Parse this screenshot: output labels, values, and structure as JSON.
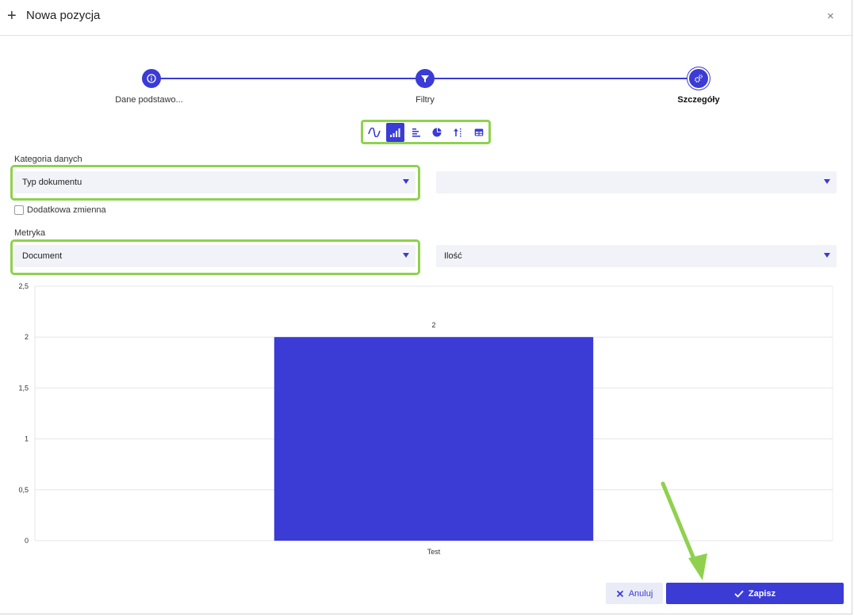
{
  "header": {
    "title": "Nowa pozycja",
    "plus_icon": "+",
    "close_icon": "×"
  },
  "stepper": {
    "steps": [
      {
        "label": "Dane podstawo...",
        "icon": "info-icon"
      },
      {
        "label": "Filtry",
        "icon": "filter-icon"
      },
      {
        "label": "Szczegóły",
        "icon": "gears-icon"
      }
    ],
    "active_index": 2
  },
  "chart_types": [
    "line-chart",
    "bar-chart",
    "horizontal-bar-chart",
    "pie-chart",
    "sort-chart",
    "table-chart"
  ],
  "chart_types_active": "bar-chart",
  "form": {
    "category_label": "Kategoria danych",
    "category_value": "Typ dokumentu",
    "category_secondary_value": "",
    "extra_variable_label": "Dodatkowa zmienna",
    "metric_label": "Metryka",
    "metric_value": "Document",
    "metric_secondary_value": "Ilość"
  },
  "chart_data": {
    "type": "bar",
    "categories": [
      "Test"
    ],
    "values": [
      2
    ],
    "data_labels": [
      "2"
    ],
    "ylim": [
      0,
      2.5
    ],
    "yticks": [
      "0",
      "0,5",
      "1",
      "1,5",
      "2",
      "2,5"
    ],
    "grid": true,
    "bar_color": "#3b3bd6"
  },
  "footer": {
    "cancel_label": "Anuluj",
    "save_label": "Zapisz"
  },
  "colors": {
    "accent": "#3b3bd6",
    "highlight": "#8fd14f"
  }
}
